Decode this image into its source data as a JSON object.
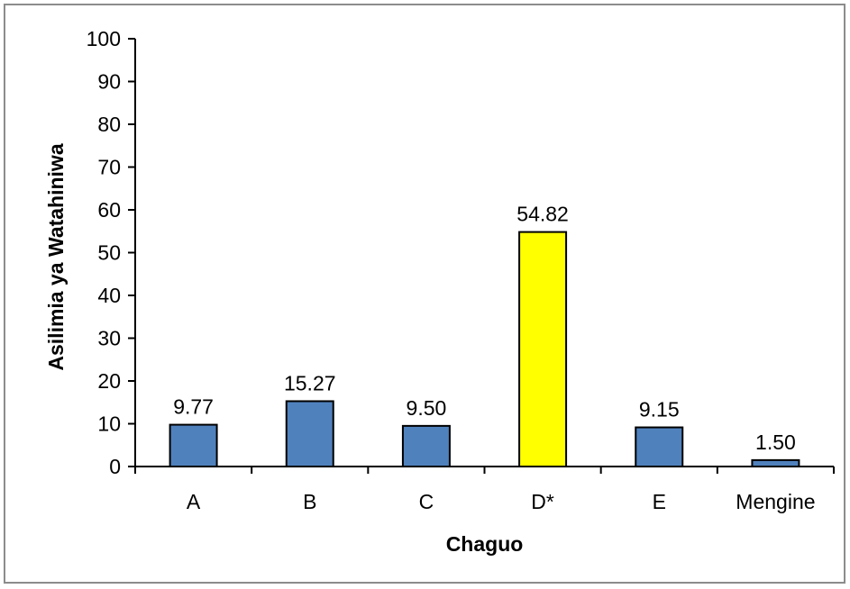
{
  "chart_data": {
    "type": "bar",
    "categories": [
      "A",
      "B",
      "C",
      "D*",
      "E",
      "Mengine"
    ],
    "values": [
      9.77,
      15.27,
      9.5,
      54.82,
      9.15,
      1.5
    ],
    "data_labels": [
      "9.77",
      "15.27",
      "9.50",
      "54.82",
      "9.15",
      "1.50"
    ],
    "highlight_index": 3,
    "xlabel": "Chaguo",
    "ylabel": "Asilimia ya Watahiniwa",
    "ylim": [
      0,
      100
    ],
    "yticks": [
      0,
      10,
      20,
      30,
      40,
      50,
      60,
      70,
      80,
      90,
      100
    ],
    "grid": false,
    "legend": "none",
    "colors": {
      "bar": "#4f81bd",
      "highlight": "#ffff00",
      "bar_edge": "#000000"
    }
  }
}
